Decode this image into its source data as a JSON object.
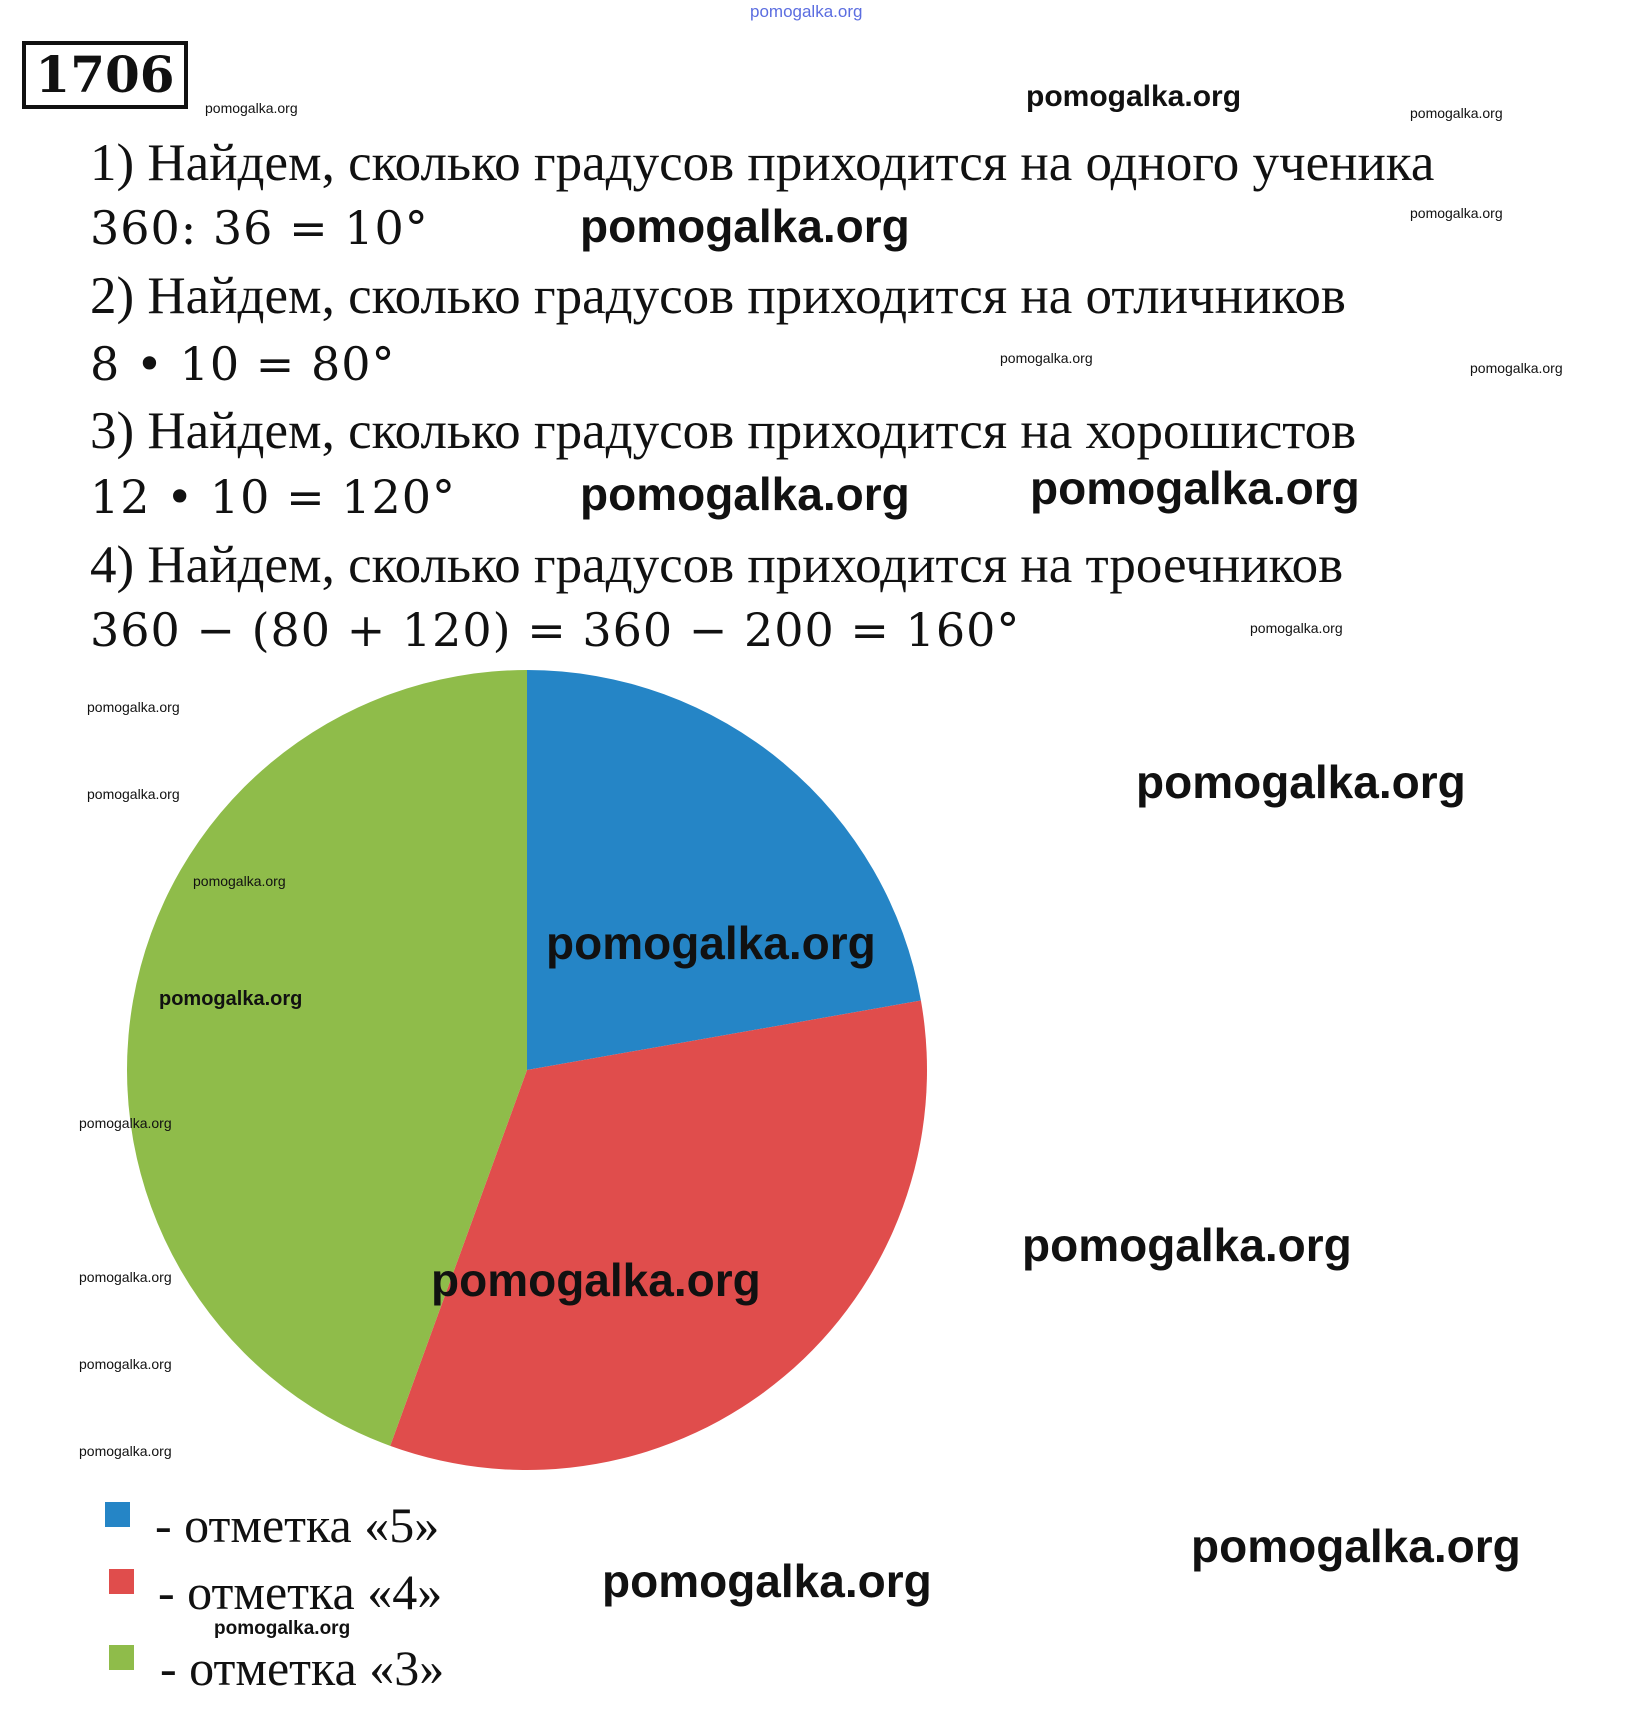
{
  "watermark": "pomogalka.org",
  "task_number": "1706",
  "steps": [
    {
      "text": "1) Найдем, сколько градусов приходится на одного ученика",
      "calc": "360: 36 = 10°"
    },
    {
      "text": "2) Найдем, сколько градусов приходится на отличников",
      "calc": "8 • 10 = 80°"
    },
    {
      "text": "3) Найдем, сколько градусов приходится на хорошистов",
      "calc": "12 • 10 = 120°"
    },
    {
      "text": "4) Найдем, сколько градусов приходится на троечников",
      "calc": "360 − (80 + 120) = 360 − 200 = 160°"
    }
  ],
  "chart_data": {
    "type": "pie",
    "unit": "degrees",
    "categories": [
      "- отметка «5»",
      "- отметка «4»",
      "- отметка «3»"
    ],
    "values": [
      80,
      120,
      160
    ],
    "colors": [
      "#2585c6",
      "#e04d4c",
      "#8fbc4a"
    ],
    "start_angle": "top",
    "direction": "clockwise",
    "legend_placement": "bottom-left"
  }
}
